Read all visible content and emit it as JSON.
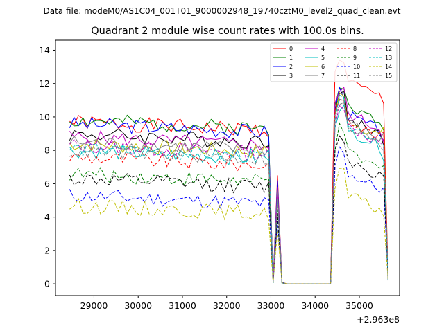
{
  "chart_data": {
    "type": "line",
    "suptitle": "Data file: modeM0/AS1C04_001T01_9000002948_19740cztM0_level2_quad_clean.evt",
    "title": "Quadrant 2 module wise count rates with 100.0s bins.",
    "xlabel": "",
    "ylabel": "",
    "offset_text": "+2.963e8",
    "xlim": [
      28130,
      35910
    ],
    "ylim": [
      -0.7,
      14.6
    ],
    "xticks": [
      29000,
      30000,
      31000,
      32000,
      33000,
      34000,
      35000
    ],
    "xtick_labels": [
      "29000",
      "30000",
      "31000",
      "32000",
      "33000",
      "34000",
      "35000"
    ],
    "yticks": [
      0,
      2,
      4,
      6,
      8,
      10,
      12,
      14
    ],
    "ytick_labels": [
      "0",
      "2",
      "4",
      "6",
      "8",
      "10",
      "12",
      "14"
    ],
    "grid": false,
    "legend_position": "top-right",
    "legend_columns": 4,
    "segments": [
      {
        "start": 28450,
        "end": 32950,
        "phase": "high"
      },
      {
        "start": 33050,
        "end": 33050,
        "phase": "dip"
      },
      {
        "start": 33150,
        "end": 33150,
        "phase": "spike"
      },
      {
        "start": 33250,
        "end": 33250,
        "phase": "dip"
      },
      {
        "start": 33350,
        "end": 34350,
        "phase": "zero"
      },
      {
        "start": 34450,
        "end": 35450,
        "phase": "high2"
      },
      {
        "start": 35550,
        "end": 35650,
        "phase": "fall"
      }
    ],
    "series": [
      {
        "name": "0",
        "color": "#ff0000",
        "dash": false,
        "base": 9.7,
        "base2": 12.5,
        "spike": 6.5,
        "seed": 1
      },
      {
        "name": "1",
        "color": "#008000",
        "dash": false,
        "base": 9.8,
        "base2": 11.0,
        "spike": 6.0,
        "seed": 2
      },
      {
        "name": "2",
        "color": "#0000ff",
        "dash": false,
        "base": 9.6,
        "base2": 10.5,
        "spike": 6.2,
        "seed": 3
      },
      {
        "name": "3",
        "color": "#000000",
        "dash": false,
        "base": 9.0,
        "base2": 10.3,
        "spike": 5.5,
        "seed": 4
      },
      {
        "name": "4",
        "color": "#bf00bf",
        "dash": false,
        "base": 8.8,
        "base2": 10.6,
        "spike": 5.8,
        "seed": 5
      },
      {
        "name": "5",
        "color": "#00bfbf",
        "dash": false,
        "base": 8.0,
        "base2": 9.6,
        "spike": 5.2,
        "seed": 6
      },
      {
        "name": "6",
        "color": "#bfbf00",
        "dash": false,
        "base": 8.4,
        "base2": 10.2,
        "spike": 5.4,
        "seed": 7
      },
      {
        "name": "7",
        "color": "#808080",
        "dash": false,
        "base": 8.5,
        "base2": 10.0,
        "spike": 5.6,
        "seed": 8
      },
      {
        "name": "8",
        "color": "#ff0000",
        "dash": true,
        "base": 7.6,
        "base2": 10.1,
        "spike": 5.0,
        "seed": 9
      },
      {
        "name": "9",
        "color": "#008000",
        "dash": true,
        "base": 6.6,
        "base2": 8.2,
        "spike": 4.4,
        "seed": 10
      },
      {
        "name": "10",
        "color": "#0000ff",
        "dash": true,
        "base": 5.3,
        "base2": 7.0,
        "spike": 3.8,
        "seed": 11
      },
      {
        "name": "11",
        "color": "#000000",
        "dash": true,
        "base": 6.3,
        "base2": 7.8,
        "spike": 4.2,
        "seed": 12
      },
      {
        "name": "12",
        "color": "#bf00bf",
        "dash": true,
        "base": 8.3,
        "base2": 9.8,
        "spike": 5.3,
        "seed": 13
      },
      {
        "name": "13",
        "color": "#00bfbf",
        "dash": true,
        "base": 8.1,
        "base2": 9.9,
        "spike": 5.1,
        "seed": 14
      },
      {
        "name": "14",
        "color": "#bfbf00",
        "dash": true,
        "base": 4.7,
        "base2": 5.7,
        "spike": 3.2,
        "seed": 15
      },
      {
        "name": "15",
        "color": "#808080",
        "dash": true,
        "base": 8.0,
        "base2": 9.7,
        "spike": 5.0,
        "seed": 16
      }
    ]
  }
}
